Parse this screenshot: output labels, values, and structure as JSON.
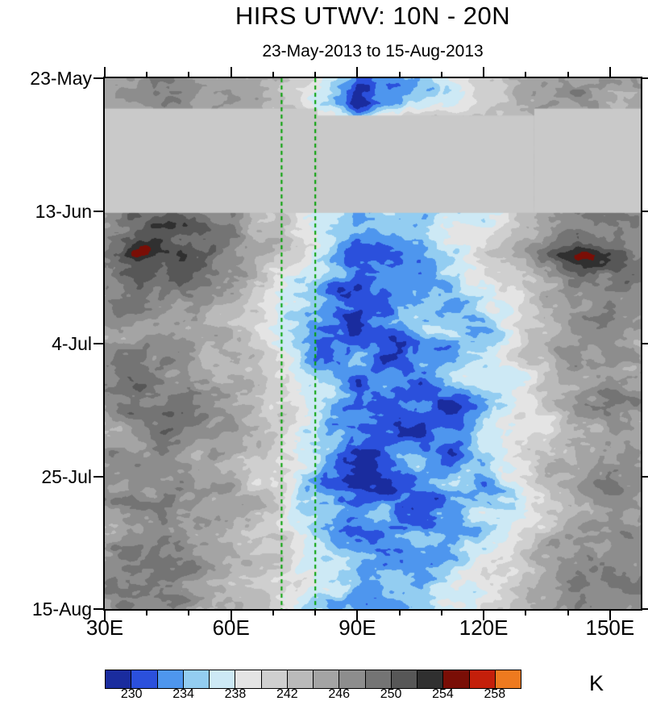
{
  "chart_data": {
    "type": "heatmap",
    "title": "HIRS UTWV: 10N - 20N",
    "subtitle": "23-May-2013 to 15-Aug-2013",
    "x_axis": {
      "range": [
        30,
        157.3
      ],
      "ticks": [
        {
          "lon": 30,
          "label": "30E"
        },
        {
          "lon": 60,
          "label": "60E"
        },
        {
          "lon": 90,
          "label": "90E"
        },
        {
          "lon": 120,
          "label": "120E"
        },
        {
          "lon": 150,
          "label": "150E"
        }
      ],
      "minor_lons": [
        40,
        50,
        70,
        80,
        100,
        110,
        130,
        140
      ]
    },
    "y_axis": {
      "range_days": [
        0,
        84
      ],
      "ticks": [
        {
          "day": 0,
          "label": "23-May"
        },
        {
          "day": 21,
          "label": "13-Jun"
        },
        {
          "day": 42,
          "label": "4-Jul"
        },
        {
          "day": 63,
          "label": "25-Jul"
        },
        {
          "day": 84,
          "label": "15-Aug"
        }
      ]
    },
    "colorbar": {
      "unit": "K",
      "range": [
        228,
        260
      ],
      "boundaries": [
        228,
        230,
        232,
        234,
        236,
        238,
        240,
        242,
        244,
        246,
        248,
        250,
        252,
        254,
        256,
        258,
        260
      ],
      "tick_labels": [
        230,
        234,
        238,
        242,
        246,
        250,
        254,
        258
      ],
      "colors": [
        "#1A2C9E",
        "#2B50DC",
        "#4E96EE",
        "#93CDF1",
        "#CDE9F5",
        "#E4E4E4",
        "#CFCFCF",
        "#BABABA",
        "#A4A4A4",
        "#8D8D8D",
        "#747474",
        "#575757",
        "#303030",
        "#7A0E06",
        "#C41F0A",
        "#EE7A1F"
      ]
    },
    "reference_lines": {
      "lons": [
        72,
        80
      ],
      "color": "#00A000",
      "style": "dashed"
    },
    "missing_data": {
      "color": "#C9C9C9",
      "regions": [
        {
          "lon": [
            30,
            80.5
          ],
          "day": [
            4.8,
            21.3
          ]
        },
        {
          "lon": [
            132,
            157.3
          ],
          "day": [
            4.8,
            21.3
          ]
        },
        {
          "lon": [
            80.5,
            132
          ],
          "day": [
            5.9,
            21.3
          ]
        }
      ]
    },
    "grid": {
      "lons": [
        30,
        37.5,
        45,
        52.5,
        60,
        67.5,
        75,
        82.5,
        90,
        97.5,
        105,
        112.5,
        120,
        127.5,
        135,
        142.5,
        150,
        157.5
      ],
      "days": [
        0,
        4,
        8,
        12,
        16,
        20,
        24,
        28,
        32,
        36,
        40,
        44,
        48,
        52,
        56,
        60,
        64,
        68,
        72,
        76,
        80,
        84
      ],
      "values_K": [
        [
          246,
          247,
          248,
          246,
          245,
          244,
          243,
          238,
          231,
          233,
          235,
          237,
          241,
          244,
          246,
          247,
          246,
          245
        ],
        [
          245,
          246,
          247,
          246,
          245,
          244,
          240,
          236,
          228,
          232,
          236,
          238,
          241,
          243,
          245,
          246,
          246,
          245
        ],
        [
          245,
          245,
          245,
          245,
          245,
          245,
          245,
          245,
          245,
          245,
          245,
          245,
          245,
          245,
          245,
          245,
          245,
          245
        ],
        [
          245,
          245,
          245,
          245,
          245,
          245,
          245,
          245,
          245,
          245,
          245,
          245,
          245,
          245,
          245,
          245,
          245,
          245
        ],
        [
          245,
          245,
          245,
          245,
          245,
          245,
          245,
          245,
          245,
          245,
          245,
          245,
          245,
          245,
          245,
          245,
          245,
          245
        ],
        [
          246,
          248,
          249,
          248,
          246,
          244,
          241,
          237,
          233,
          235,
          234,
          237,
          235,
          241,
          245,
          247,
          247,
          246
        ],
        [
          246,
          249,
          251,
          250,
          247,
          244,
          240,
          236,
          233,
          236,
          234,
          238,
          236,
          242,
          246,
          248,
          247,
          246
        ],
        [
          249,
          254,
          252,
          250,
          247,
          244,
          240,
          236,
          232,
          230,
          234,
          236,
          240,
          244,
          248,
          254,
          251,
          248
        ],
        [
          247,
          250,
          249,
          248,
          246,
          243,
          238,
          234,
          231,
          234,
          232,
          236,
          238,
          241,
          245,
          249,
          250,
          247
        ],
        [
          246,
          248,
          247,
          246,
          244,
          241,
          237,
          233,
          230,
          233,
          236,
          234,
          237,
          240,
          244,
          247,
          248,
          246
        ],
        [
          245,
          247,
          246,
          245,
          243,
          240,
          236,
          232,
          229,
          232,
          234,
          236,
          233,
          239,
          243,
          246,
          247,
          245
        ],
        [
          246,
          248,
          247,
          245,
          244,
          242,
          237,
          231,
          233,
          230,
          234,
          232,
          237,
          241,
          244,
          246,
          246,
          245
        ],
        [
          247,
          249,
          248,
          246,
          245,
          243,
          239,
          235,
          231,
          233,
          231,
          235,
          238,
          236,
          242,
          245,
          247,
          246
        ],
        [
          246,
          248,
          250,
          248,
          246,
          244,
          240,
          236,
          232,
          230,
          233,
          229,
          234,
          238,
          242,
          246,
          248,
          247
        ],
        [
          245,
          247,
          248,
          247,
          245,
          243,
          239,
          235,
          233,
          231,
          229,
          233,
          236,
          240,
          238,
          244,
          246,
          245
        ],
        [
          246,
          247,
          246,
          245,
          244,
          242,
          238,
          234,
          230,
          232,
          234,
          231,
          235,
          239,
          243,
          245,
          247,
          246
        ],
        [
          247,
          248,
          247,
          246,
          244,
          241,
          237,
          233,
          231,
          229,
          233,
          235,
          232,
          238,
          242,
          246,
          248,
          247
        ],
        [
          246,
          247,
          248,
          246,
          245,
          243,
          238,
          234,
          232,
          234,
          230,
          233,
          237,
          235,
          241,
          244,
          246,
          245
        ],
        [
          245,
          246,
          247,
          245,
          244,
          242,
          239,
          235,
          231,
          233,
          235,
          232,
          236,
          240,
          243,
          246,
          247,
          246
        ],
        [
          246,
          248,
          249,
          247,
          245,
          243,
          240,
          236,
          234,
          231,
          233,
          236,
          238,
          241,
          244,
          247,
          248,
          246
        ],
        [
          247,
          249,
          248,
          246,
          244,
          242,
          239,
          237,
          233,
          235,
          232,
          236,
          239,
          242,
          245,
          248,
          249,
          247
        ],
        [
          246,
          248,
          247,
          245,
          243,
          241,
          238,
          236,
          234,
          232,
          235,
          237,
          240,
          243,
          246,
          248,
          247,
          246
        ]
      ]
    }
  }
}
